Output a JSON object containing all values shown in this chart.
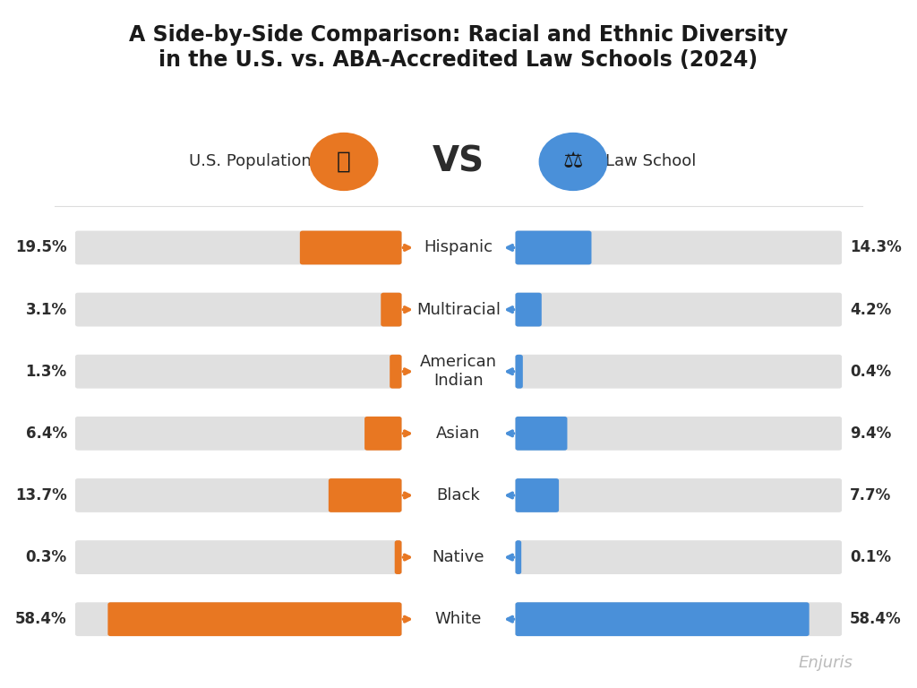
{
  "title": "A Side-by-Side Comparison: Racial and Ethnic Diversity\nin the U.S. vs. ABA-Accredited Law Schools (2024)",
  "categories": [
    "Hispanic",
    "Multiracial",
    "American\nIndian",
    "Asian",
    "Black",
    "Native",
    "White"
  ],
  "us_pop": [
    19.5,
    3.1,
    1.3,
    6.4,
    13.7,
    0.3,
    58.4
  ],
  "law_school": [
    14.3,
    4.2,
    0.4,
    9.4,
    7.7,
    0.1,
    58.4
  ],
  "us_pop_labels": [
    "19.5%",
    "3.1%",
    "1.3%",
    "6.4%",
    "13.7%",
    "0.3%",
    "58.4%"
  ],
  "law_labels": [
    "14.3%",
    "4.2%",
    "0.4%",
    "9.4%",
    "7.7%",
    "0.1%",
    "58.4%"
  ],
  "max_val": 65,
  "us_color": "#E87722",
  "law_color": "#4A90D9",
  "bg_bar_color": "#E0E0E0",
  "bg_color": "#FFFFFF",
  "title_fontsize": 17,
  "label_fontsize": 12,
  "cat_fontsize": 13,
  "vs_fontsize": 28,
  "pop_label": "U.S. Population",
  "law_label": "Law School",
  "watermark": "Enjuris"
}
